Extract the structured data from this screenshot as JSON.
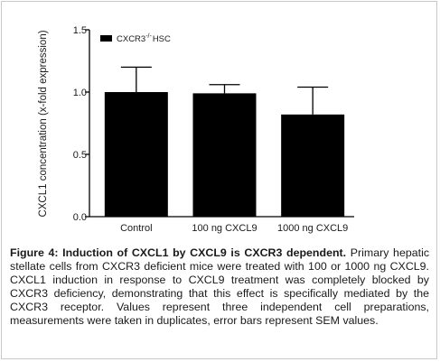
{
  "chart_data": {
    "type": "bar",
    "categories": [
      "Control",
      "100 ng CXCL9",
      "1000 ng CXCL9"
    ],
    "series": [
      {
        "name": "CXCR3",
        "values": [
          1.0,
          0.99,
          0.82
        ],
        "errors": [
          0.2,
          0.07,
          0.22
        ]
      }
    ],
    "legend_label": {
      "base": "CXCR3",
      "superscript": "-/-",
      "suffix": "HSC"
    },
    "title": "",
    "xlabel": "",
    "ylabel": "CXCL1 concentration (x-fold expression)",
    "ylim": [
      0,
      1.5
    ],
    "yticks": [
      0.0,
      0.5,
      1.0,
      1.5
    ],
    "ytick_labels": [
      "0.0",
      "0.5",
      "1.0",
      "1.5"
    ],
    "grid": false,
    "legend_position": "top-left",
    "bar_color": "#000000",
    "error_bar": "SEM"
  },
  "caption": {
    "label": "Figure 4: Induction of CXCL1 by CXCL9 is CXCR3 dependent.",
    "text": "Primary hepatic stellate cells from CXCR3 deficient mice were treated with 100 or 1000 ng CXCL9. CXCL1 induction in response to CXCL9 treatment was completely blocked by CXCR3 deficiency, demonstrating that this effect is specifically mediated by the CXCR3 receptor. Values represent three independent cell preparations, measurements were taken in duplicates, error bars represent SEM values."
  }
}
